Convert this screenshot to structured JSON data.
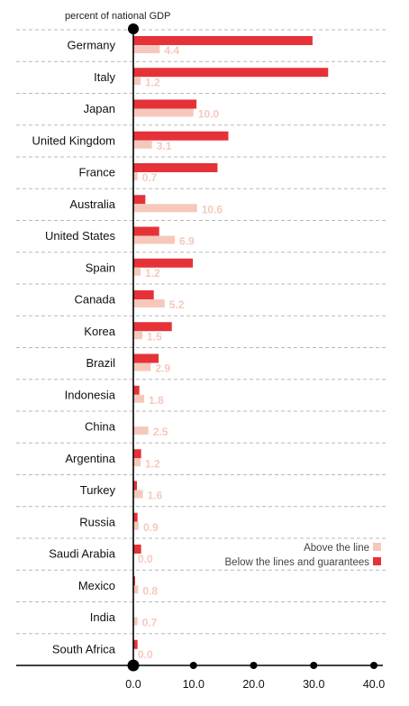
{
  "chart_data": {
    "type": "bar",
    "orientation": "horizontal",
    "header": "percent of national GDP",
    "categories": [
      "Germany",
      "Italy",
      "Japan",
      "United Kingdom",
      "France",
      "Australia",
      "United States",
      "Spain",
      "Canada",
      "Korea",
      "Brazil",
      "Indonesia",
      "China",
      "Argentina",
      "Turkey",
      "Russia",
      "Saudi Arabia",
      "Mexico",
      "India",
      "South Africa"
    ],
    "series": [
      {
        "name": "Below the lines and guarantees",
        "color": "#e53238",
        "values": [
          29.8,
          32.4,
          10.5,
          15.8,
          14.0,
          2.0,
          4.3,
          9.9,
          3.4,
          6.4,
          4.2,
          1.0,
          0.0,
          1.3,
          0.6,
          0.7,
          1.3,
          0.3,
          0.0,
          0.7
        ]
      },
      {
        "name": "Above the line",
        "color": "#f6c8bb",
        "values": [
          4.4,
          1.2,
          10.0,
          3.1,
          0.7,
          10.6,
          6.9,
          1.2,
          5.2,
          1.5,
          2.9,
          1.8,
          2.5,
          1.2,
          1.6,
          0.9,
          0.0,
          0.8,
          0.7,
          0.0
        ],
        "labels": [
          "4.4",
          "1.2",
          "10.0",
          "3.1",
          "0.7",
          "10.6",
          "6.9",
          "1.2",
          "5.2",
          "1.5",
          "2.9",
          "1.8",
          "2.5",
          "1.2",
          "1.6",
          "0.9",
          "0.0",
          "0.8",
          "0.7",
          "0.0"
        ]
      }
    ],
    "xlim": [
      0,
      40
    ],
    "xticks": [
      "0.0",
      "10.0",
      "20.0",
      "30.0",
      "40.0"
    ],
    "legend": {
      "placement": "lower-right",
      "entries": [
        {
          "label": "Above the line",
          "color": "#f6c8bb"
        },
        {
          "label": "Below the lines and guarantees",
          "color": "#e53238"
        }
      ]
    },
    "grid": "dashed horizontal separators"
  }
}
